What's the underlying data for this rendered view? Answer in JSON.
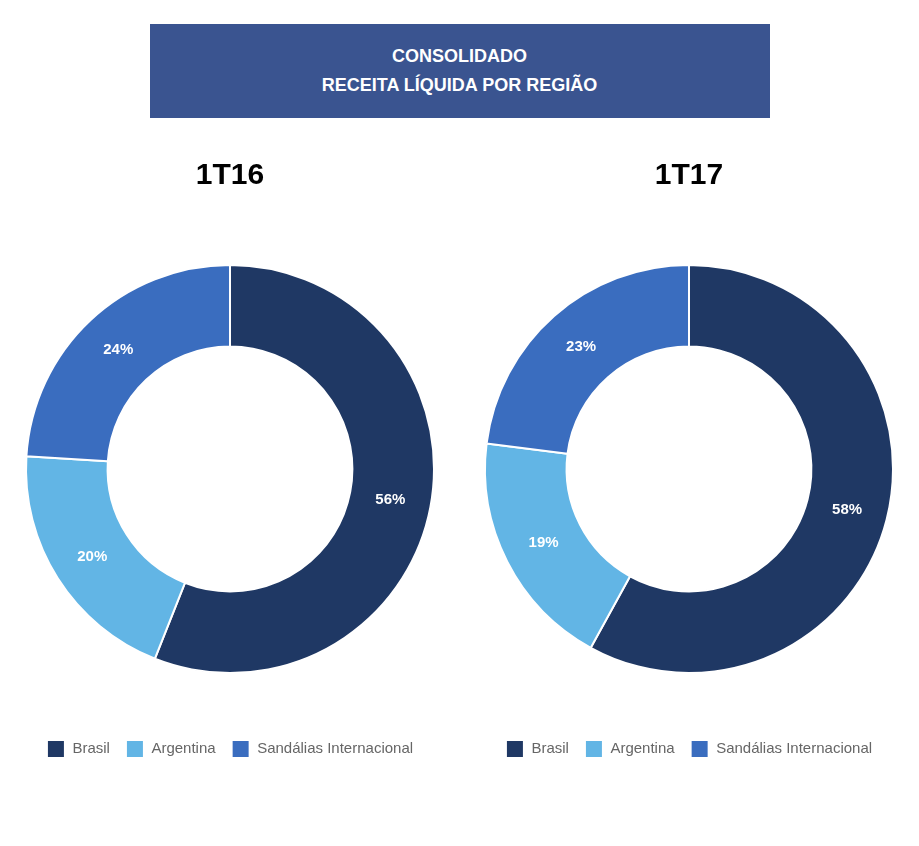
{
  "title": "CONSOLIDADO",
  "subtitle": "RECEITA LÍQUIDA POR REGIÃO",
  "chart_data": [
    {
      "type": "doughnut",
      "title": "1T16",
      "categories": [
        "Brasil",
        "Argentina",
        "Sandálias Internacional"
      ],
      "values": [
        56,
        20,
        24
      ],
      "value_labels": [
        "56%",
        "20%",
        "24%"
      ],
      "colors": [
        "#1F3864",
        "#62B5E5",
        "#3A6DBF"
      ],
      "data_labels": true,
      "legend": "bottom"
    },
    {
      "type": "doughnut",
      "title": "1T17",
      "categories": [
        "Brasil",
        "Argentina",
        "Sandálias Internacional"
      ],
      "values": [
        58,
        19,
        23
      ],
      "value_labels": [
        "58%",
        "19%",
        "23%"
      ],
      "colors": [
        "#1F3864",
        "#62B5E5",
        "#3A6DBF"
      ],
      "data_labels": true,
      "legend": "bottom"
    }
  ]
}
